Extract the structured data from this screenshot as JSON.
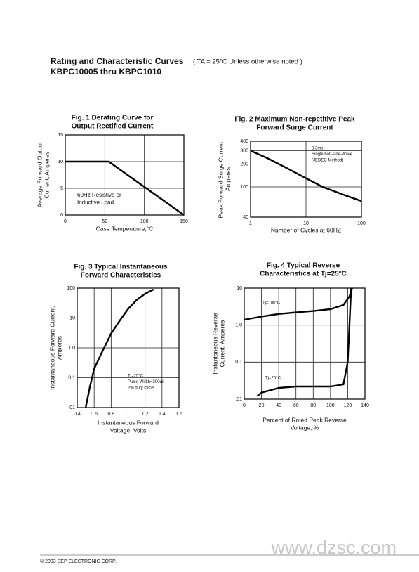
{
  "header": {
    "title": "Rating and Characteristic Curves",
    "note": "( TA = 25°C Unless otherwise noted )",
    "subtitle": "KBPC10005 thru KBPC1010"
  },
  "chart_data": [
    {
      "type": "line",
      "title": [
        "Fig. 1 Derating Curve for",
        "Output Rectified Current"
      ],
      "ylabel": [
        "Average Forward Output",
        "Current, Amperes"
      ],
      "xlabel": [
        "Case Temperature,°C"
      ],
      "x": [
        0,
        55,
        150
      ],
      "values": [
        10,
        10,
        0
      ],
      "xlim": [
        0,
        150
      ],
      "ylim": [
        0,
        15
      ],
      "xticks": [
        0,
        50,
        100,
        150
      ],
      "yticks": [
        0,
        5,
        10,
        15
      ],
      "grid": true,
      "annotations": [
        [
          "60Hz Resistive or",
          "Inductive Load"
        ]
      ]
    },
    {
      "type": "line",
      "title": [
        "Fig. 2 Maximum Non-repetitive Peak",
        "Forward Surge Current"
      ],
      "ylabel": [
        "Peak Forward Surge Current,",
        "Amperes"
      ],
      "xlabel": [
        "Number of Cycles at 60HZ"
      ],
      "x": [
        1,
        2,
        5,
        10,
        20,
        50,
        100
      ],
      "values": [
        300,
        240,
        170,
        130,
        100,
        78,
        65
      ],
      "xlim": [
        1,
        100
      ],
      "ylim": [
        40,
        400
      ],
      "xticks": [
        1,
        10,
        100
      ],
      "yticks": [
        40,
        100,
        200,
        300,
        400
      ],
      "xlog": true,
      "ylog": true,
      "grid": true,
      "annotations": [
        [
          "8.3ms",
          "Single half-sine-Wave",
          "(JEDEC Method)"
        ]
      ]
    },
    {
      "type": "line",
      "title": [
        "Fig. 3 Typical Instantaneous",
        "Forward Characteristics"
      ],
      "ylabel": [
        "Instantaneous Forward Current,",
        "Amperes"
      ],
      "xlabel": [
        "Instantaneous Forward",
        "Voltage, Volts"
      ],
      "x": [
        0.5,
        0.55,
        0.6,
        0.7,
        0.8,
        0.9,
        1.0,
        1.1,
        1.2,
        1.3
      ],
      "values": [
        0.01,
        0.05,
        0.2,
        0.8,
        3,
        8,
        20,
        40,
        65,
        90
      ],
      "xlim": [
        0.4,
        1.6
      ],
      "ylim": [
        0.01,
        100
      ],
      "xticks": [
        0.4,
        0.6,
        0.8,
        1.0,
        1.2,
        1.4,
        1.6
      ],
      "yticks": [
        {
          "value": 0.01,
          "label": ".01"
        },
        0.1,
        {
          "value": 1,
          "label": "1.0"
        },
        10,
        100
      ],
      "ylog": true,
      "grid": true,
      "annotations": [
        [
          "Tj=25°C",
          "Pulse Width=300us",
          "2% duty cycle"
        ]
      ]
    },
    {
      "type": "line",
      "title": [
        "Fig. 4 Typical Reverse",
        "Characteristics at Tj=25°C"
      ],
      "ylabel": [
        "Instantaneous Reverse",
        "Current, Amperes"
      ],
      "xlabel": [
        "Percent of Rated Peak Reverse",
        "Voltage, %"
      ],
      "series": [
        {
          "name": "Tj=100°C",
          "color": "#000000",
          "x": [
            0,
            20,
            40,
            60,
            80,
            100,
            115,
            122,
            125
          ],
          "values": [
            1.4,
            1.7,
            2,
            2.2,
            2.4,
            2.7,
            3.5,
            6,
            10
          ]
        },
        {
          "name": "Tj=25°C",
          "color": "#000000",
          "x": [
            15,
            20,
            40,
            60,
            80,
            100,
            115,
            120,
            122,
            124
          ],
          "values": [
            0.012,
            0.015,
            0.02,
            0.022,
            0.022,
            0.022,
            0.025,
            0.1,
            1,
            10
          ]
        }
      ],
      "xlim": [
        0,
        140
      ],
      "ylim": [
        0.01,
        10
      ],
      "xticks": [
        0,
        20,
        40,
        60,
        80,
        100,
        120,
        140
      ],
      "yticks": [
        {
          "value": 0.01,
          "label": ".01"
        },
        0.1,
        {
          "value": 1,
          "label": "1.0"
        },
        10
      ],
      "ylog": true,
      "grid": true
    }
  ],
  "footer": "© 2003  SEP ELECTRONIC CORP.",
  "watermark": "www.dzsc.com"
}
